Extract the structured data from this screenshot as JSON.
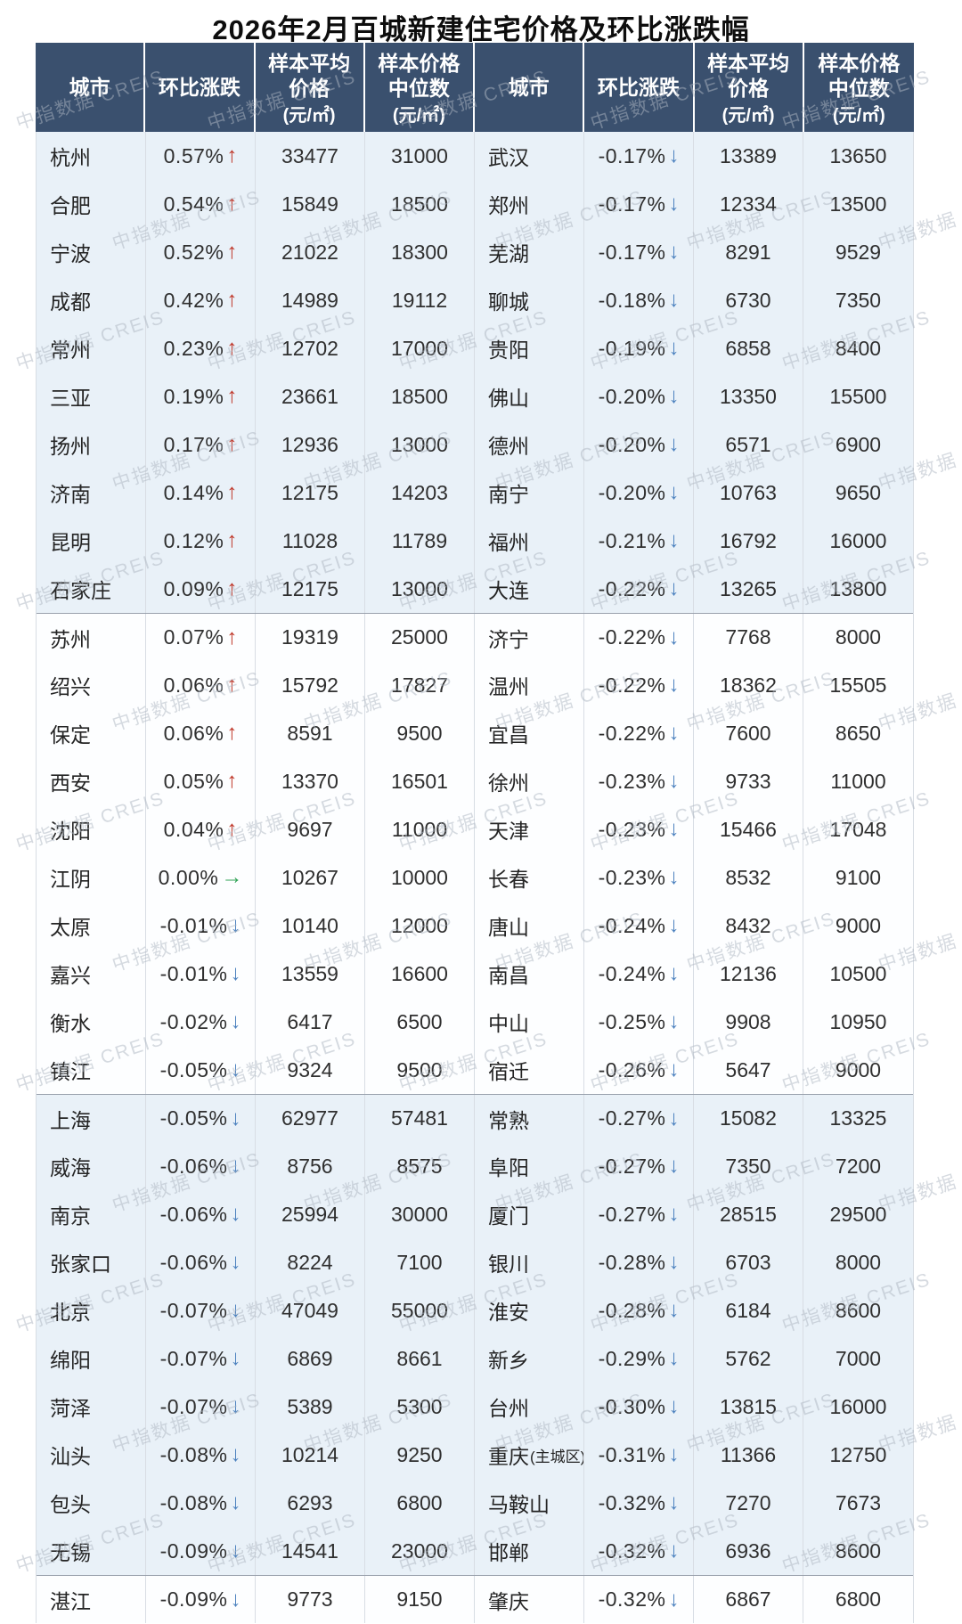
{
  "title": "2026年2月百城新建住宅价格及环比涨跌幅",
  "watermark_text": "中指数据 CREIS",
  "header": {
    "city": "城市",
    "change": "环比涨跌",
    "avg_lines": [
      "样本平均",
      "价格"
    ],
    "median_lines": [
      "样本价格",
      "中位数"
    ],
    "unit": "(元/㎡)"
  },
  "arrows": {
    "up": "↑",
    "down": "↓",
    "flat": "→"
  },
  "colors": {
    "header_bg": "#3a506e",
    "band_blue": "#e9f1f8",
    "band_white": "#fdfeff",
    "grid_line": "#d8dde4",
    "group_separator": "#99a1ac",
    "up_arrow": "#c0392b",
    "down_arrow": "#4d82bf",
    "flat_arrow": "#2fa355"
  },
  "left_rows": [
    {
      "city": "杭州",
      "change": "0.57%",
      "dir": "up",
      "avg": "33477",
      "median": "31000"
    },
    {
      "city": "合肥",
      "change": "0.54%",
      "dir": "up",
      "avg": "15849",
      "median": "18500"
    },
    {
      "city": "宁波",
      "change": "0.52%",
      "dir": "up",
      "avg": "21022",
      "median": "18300"
    },
    {
      "city": "成都",
      "change": "0.42%",
      "dir": "up",
      "avg": "14989",
      "median": "19112"
    },
    {
      "city": "常州",
      "change": "0.23%",
      "dir": "up",
      "avg": "12702",
      "median": "17000"
    },
    {
      "city": "三亚",
      "change": "0.19%",
      "dir": "up",
      "avg": "23661",
      "median": "18500"
    },
    {
      "city": "扬州",
      "change": "0.17%",
      "dir": "up",
      "avg": "12936",
      "median": "13000"
    },
    {
      "city": "济南",
      "change": "0.14%",
      "dir": "up",
      "avg": "12175",
      "median": "14203"
    },
    {
      "city": "昆明",
      "change": "0.12%",
      "dir": "up",
      "avg": "11028",
      "median": "11789"
    },
    {
      "city": "石家庄",
      "change": "0.09%",
      "dir": "up",
      "avg": "12175",
      "median": "13000"
    },
    {
      "city": "苏州",
      "change": "0.07%",
      "dir": "up",
      "avg": "19319",
      "median": "25000"
    },
    {
      "city": "绍兴",
      "change": "0.06%",
      "dir": "up",
      "avg": "15792",
      "median": "17827"
    },
    {
      "city": "保定",
      "change": "0.06%",
      "dir": "up",
      "avg": "8591",
      "median": "9500"
    },
    {
      "city": "西安",
      "change": "0.05%",
      "dir": "up",
      "avg": "13370",
      "median": "16501"
    },
    {
      "city": "沈阳",
      "change": "0.04%",
      "dir": "up",
      "avg": "9697",
      "median": "11000"
    },
    {
      "city": "江阴",
      "change": "0.00%",
      "dir": "flat",
      "avg": "10267",
      "median": "10000"
    },
    {
      "city": "太原",
      "change": "-0.01%",
      "dir": "down",
      "avg": "10140",
      "median": "12000"
    },
    {
      "city": "嘉兴",
      "change": "-0.01%",
      "dir": "down",
      "avg": "13559",
      "median": "16600"
    },
    {
      "city": "衡水",
      "change": "-0.02%",
      "dir": "down",
      "avg": "6417",
      "median": "6500"
    },
    {
      "city": "镇江",
      "change": "-0.05%",
      "dir": "down",
      "avg": "9324",
      "median": "9500"
    },
    {
      "city": "上海",
      "change": "-0.05%",
      "dir": "down",
      "avg": "62977",
      "median": "57481"
    },
    {
      "city": "威海",
      "change": "-0.06%",
      "dir": "down",
      "avg": "8756",
      "median": "8575"
    },
    {
      "city": "南京",
      "change": "-0.06%",
      "dir": "down",
      "avg": "25994",
      "median": "30000"
    },
    {
      "city": "张家口",
      "change": "-0.06%",
      "dir": "down",
      "avg": "8224",
      "median": "7100"
    },
    {
      "city": "北京",
      "change": "-0.07%",
      "dir": "down",
      "avg": "47049",
      "median": "55000"
    },
    {
      "city": "绵阳",
      "change": "-0.07%",
      "dir": "down",
      "avg": "6869",
      "median": "8661"
    },
    {
      "city": "菏泽",
      "change": "-0.07%",
      "dir": "down",
      "avg": "5389",
      "median": "5300"
    },
    {
      "city": "汕头",
      "change": "-0.08%",
      "dir": "down",
      "avg": "10214",
      "median": "9250"
    },
    {
      "city": "包头",
      "change": "-0.08%",
      "dir": "down",
      "avg": "6293",
      "median": "6800"
    },
    {
      "city": "无锡",
      "change": "-0.09%",
      "dir": "down",
      "avg": "14541",
      "median": "23000"
    },
    {
      "city": "湛江",
      "change": "-0.09%",
      "dir": "down",
      "avg": "9773",
      "median": "9150"
    }
  ],
  "right_rows": [
    {
      "city": "武汉",
      "change": "-0.17%",
      "dir": "down",
      "avg": "13389",
      "median": "13650"
    },
    {
      "city": "郑州",
      "change": "-0.17%",
      "dir": "down",
      "avg": "12334",
      "median": "13500"
    },
    {
      "city": "芜湖",
      "change": "-0.17%",
      "dir": "down",
      "avg": "8291",
      "median": "9529"
    },
    {
      "city": "聊城",
      "change": "-0.18%",
      "dir": "down",
      "avg": "6730",
      "median": "7350"
    },
    {
      "city": "贵阳",
      "change": "-0.19%",
      "dir": "down",
      "avg": "6858",
      "median": "8400"
    },
    {
      "city": "佛山",
      "change": "-0.20%",
      "dir": "down",
      "avg": "13350",
      "median": "15500"
    },
    {
      "city": "德州",
      "change": "-0.20%",
      "dir": "down",
      "avg": "6571",
      "median": "6900"
    },
    {
      "city": "南宁",
      "change": "-0.20%",
      "dir": "down",
      "avg": "10763",
      "median": "9650"
    },
    {
      "city": "福州",
      "change": "-0.21%",
      "dir": "down",
      "avg": "16792",
      "median": "16000"
    },
    {
      "city": "大连",
      "change": "-0.22%",
      "dir": "down",
      "avg": "13265",
      "median": "13800"
    },
    {
      "city": "济宁",
      "change": "-0.22%",
      "dir": "down",
      "avg": "7768",
      "median": "8000"
    },
    {
      "city": "温州",
      "change": "-0.22%",
      "dir": "down",
      "avg": "18362",
      "median": "15505"
    },
    {
      "city": "宜昌",
      "change": "-0.22%",
      "dir": "down",
      "avg": "7600",
      "median": "8650"
    },
    {
      "city": "徐州",
      "change": "-0.23%",
      "dir": "down",
      "avg": "9733",
      "median": "11000"
    },
    {
      "city": "天津",
      "change": "-0.23%",
      "dir": "down",
      "avg": "15466",
      "median": "17048"
    },
    {
      "city": "长春",
      "change": "-0.23%",
      "dir": "down",
      "avg": "8532",
      "median": "9100"
    },
    {
      "city": "唐山",
      "change": "-0.24%",
      "dir": "down",
      "avg": "8432",
      "median": "9000"
    },
    {
      "city": "南昌",
      "change": "-0.24%",
      "dir": "down",
      "avg": "12136",
      "median": "10500"
    },
    {
      "city": "中山",
      "change": "-0.25%",
      "dir": "down",
      "avg": "9908",
      "median": "10950"
    },
    {
      "city": "宿迁",
      "change": "-0.26%",
      "dir": "down",
      "avg": "5647",
      "median": "9000"
    },
    {
      "city": "常熟",
      "change": "-0.27%",
      "dir": "down",
      "avg": "15082",
      "median": "13325"
    },
    {
      "city": "阜阳",
      "change": "-0.27%",
      "dir": "down",
      "avg": "7350",
      "median": "7200"
    },
    {
      "city": "厦门",
      "change": "-0.27%",
      "dir": "down",
      "avg": "28515",
      "median": "29500"
    },
    {
      "city": "银川",
      "change": "-0.28%",
      "dir": "down",
      "avg": "6703",
      "median": "8000"
    },
    {
      "city": "淮安",
      "change": "-0.28%",
      "dir": "down",
      "avg": "6184",
      "median": "8600"
    },
    {
      "city": "新乡",
      "change": "-0.29%",
      "dir": "down",
      "avg": "5762",
      "median": "7000"
    },
    {
      "city": "台州",
      "change": "-0.30%",
      "dir": "down",
      "avg": "13815",
      "median": "16000"
    },
    {
      "city": "重庆",
      "suffix": "(主城区)",
      "change": "-0.31%",
      "dir": "down",
      "avg": "11366",
      "median": "12750"
    },
    {
      "city": "马鞍山",
      "change": "-0.32%",
      "dir": "down",
      "avg": "7270",
      "median": "7673"
    },
    {
      "city": "邯郸",
      "change": "-0.32%",
      "dir": "down",
      "avg": "6936",
      "median": "8600"
    },
    {
      "city": "肇庆",
      "change": "-0.32%",
      "dir": "down",
      "avg": "6867",
      "median": "6800"
    }
  ]
}
